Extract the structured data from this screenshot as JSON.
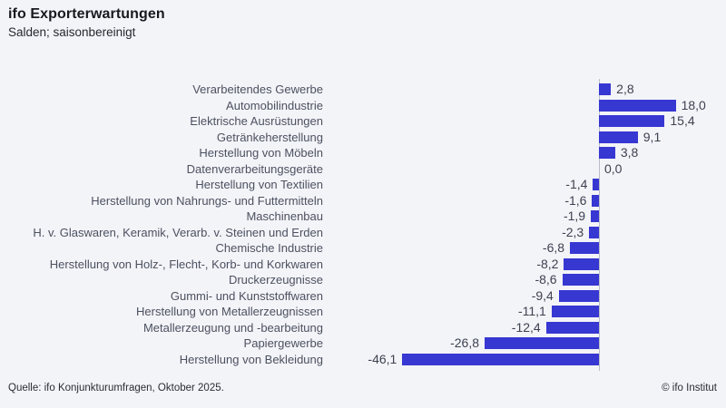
{
  "header": {
    "title": "ifo Exporterwartungen",
    "subtitle": "Salden; saisonbereinigt"
  },
  "chart_data": {
    "type": "bar",
    "orientation": "horizontal",
    "title": "ifo Exporterwartungen",
    "subtitle": "Salden; saisonbereinigt",
    "categories": [
      "Verarbeitendes Gewerbe",
      "Automobilindustrie",
      "Elektrische Ausrüstungen",
      "Getränkeherstellung",
      "Herstellung von Möbeln",
      "Datenverarbeitungsgeräte",
      "Herstellung von Textilien",
      "Herstellung von Nahrungs- und Futtermitteln",
      "Maschinenbau",
      "H. v. Glaswaren, Keramik, Verarb. v. Steinen und Erden",
      "Chemische Industrie",
      "Herstellung von Holz-, Flecht-, Korb- und Korkwaren",
      "Druckerzeugnisse",
      "Gummi- und Kunststoffwaren",
      "Herstellung von Metallerzeugnissen",
      "Metallerzeugung und -bearbeitung",
      "Papiergewerbe",
      "Herstellung von Bekleidung"
    ],
    "values": [
      2.8,
      18.0,
      15.4,
      9.1,
      3.8,
      0.0,
      -1.4,
      -1.6,
      -1.9,
      -2.3,
      -6.8,
      -8.2,
      -8.6,
      -9.4,
      -11.1,
      -12.4,
      -26.8,
      -46.1
    ],
    "value_labels": [
      "2,8",
      "18,0",
      "15,4",
      "9,1",
      "3,8",
      "0,0",
      "-1,4",
      "-1,6",
      "-1,9",
      "-2,3",
      "-6,8",
      "-8,2",
      "-8,6",
      "-9,4",
      "-11,1",
      "-12,4",
      "-26,8",
      "-46,1"
    ],
    "xlim": [
      -50,
      20
    ],
    "grid": false,
    "legend": "none",
    "bar_color": "#3737d2",
    "axis_color": "#b9bcc6",
    "value_label_position": "end"
  },
  "footer": {
    "source": "Quelle: ifo Konjunkturumfragen, Oktober 2025.",
    "copyright": "© ifo Institut"
  }
}
